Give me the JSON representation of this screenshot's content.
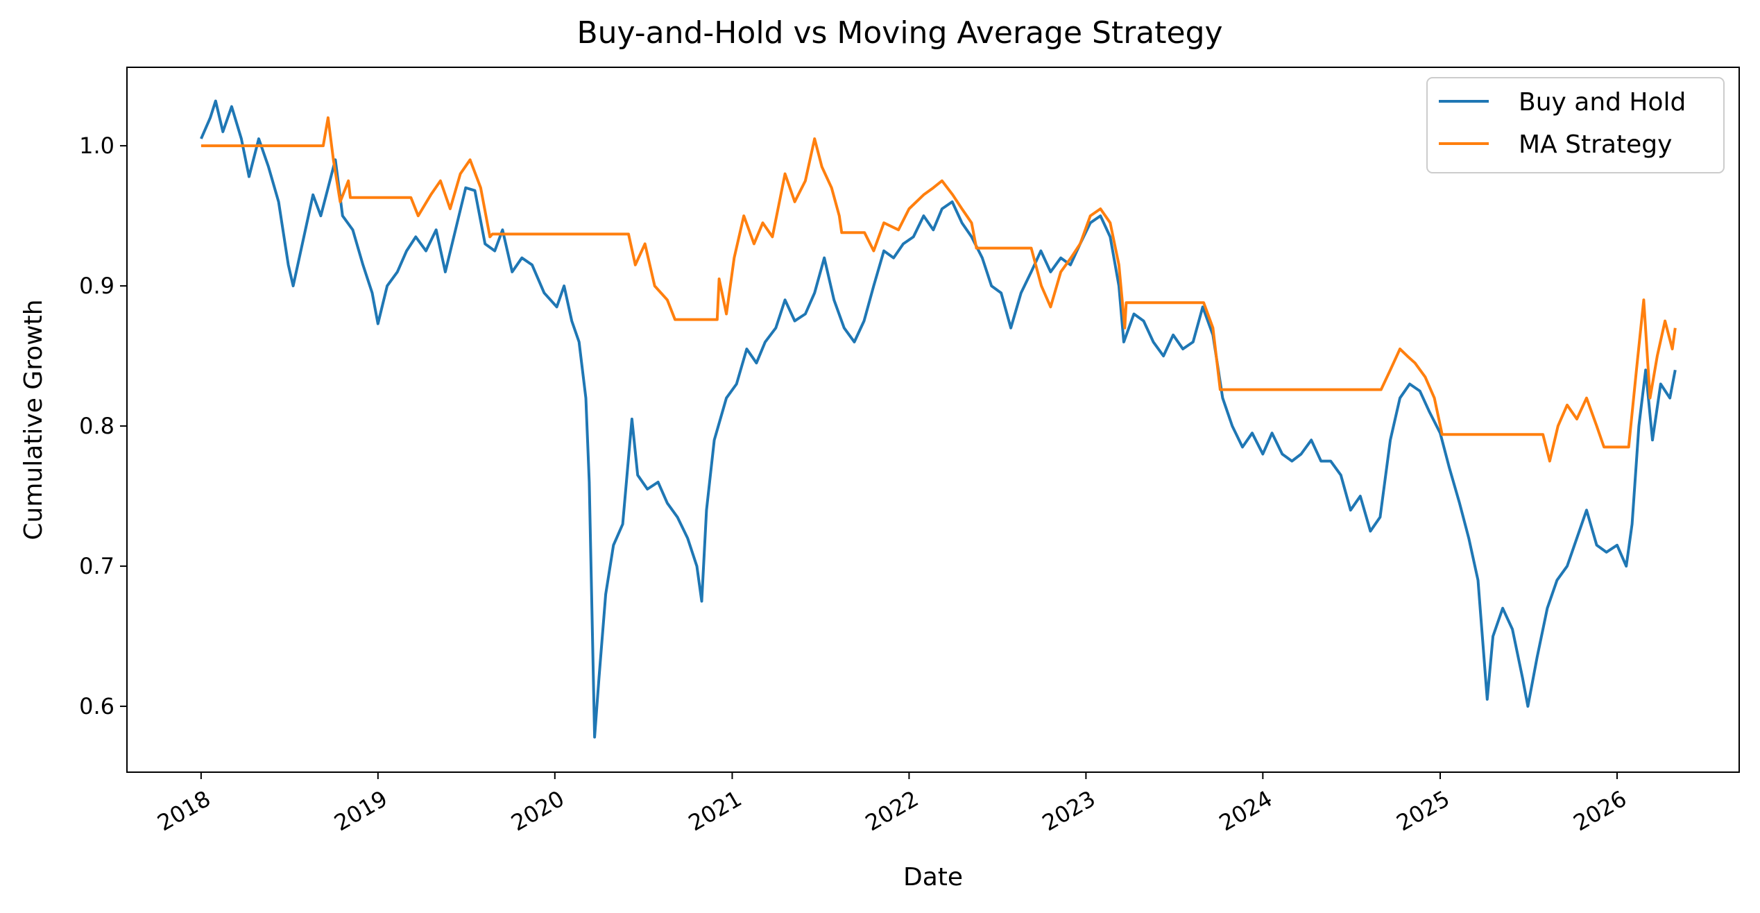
{
  "chart_data": {
    "type": "line",
    "title": "Buy-and-Hold vs Moving Average Strategy",
    "xlabel": "Date",
    "ylabel": "Cumulative Growth",
    "x_ticks": [
      "2018",
      "2019",
      "2020",
      "2021",
      "2022",
      "2023",
      "2024",
      "2025",
      "2026"
    ],
    "y_ticks": [
      "0.6",
      "0.7",
      "0.8",
      "0.9",
      "1.0"
    ],
    "xlim": [
      "2017-08-01",
      "2026-09-10"
    ],
    "ylim": [
      0.553,
      1.056
    ],
    "grid": false,
    "legend_position": "top-right",
    "series": [
      {
        "name": "Buy and Hold",
        "color": "#1f77b4",
        "points": [
          [
            "2018-01-01",
            1.005
          ],
          [
            "2018-01-20",
            1.02
          ],
          [
            "2018-01-31",
            1.032
          ],
          [
            "2018-02-15",
            1.01
          ],
          [
            "2018-03-05",
            1.028
          ],
          [
            "2018-03-25",
            1.005
          ],
          [
            "2018-04-10",
            0.978
          ],
          [
            "2018-04-30",
            1.005
          ],
          [
            "2018-05-20",
            0.985
          ],
          [
            "2018-06-10",
            0.96
          ],
          [
            "2018-06-30",
            0.915
          ],
          [
            "2018-07-10",
            0.9
          ],
          [
            "2018-08-01",
            0.935
          ],
          [
            "2018-08-20",
            0.965
          ],
          [
            "2018-09-05",
            0.95
          ],
          [
            "2018-09-20",
            0.97
          ],
          [
            "2018-10-05",
            0.99
          ],
          [
            "2018-10-20",
            0.95
          ],
          [
            "2018-11-10",
            0.94
          ],
          [
            "2018-12-01",
            0.915
          ],
          [
            "2018-12-20",
            0.895
          ],
          [
            "2019-01-01",
            0.873
          ],
          [
            "2019-01-20",
            0.9
          ],
          [
            "2019-02-10",
            0.91
          ],
          [
            "2019-03-01",
            0.925
          ],
          [
            "2019-03-20",
            0.935
          ],
          [
            "2019-04-10",
            0.925
          ],
          [
            "2019-05-01",
            0.94
          ],
          [
            "2019-05-20",
            0.91
          ],
          [
            "2019-06-10",
            0.94
          ],
          [
            "2019-07-01",
            0.97
          ],
          [
            "2019-07-20",
            0.968
          ],
          [
            "2019-08-10",
            0.93
          ],
          [
            "2019-08-30",
            0.925
          ],
          [
            "2019-09-15",
            0.94
          ],
          [
            "2019-10-05",
            0.91
          ],
          [
            "2019-10-25",
            0.92
          ],
          [
            "2019-11-15",
            0.915
          ],
          [
            "2019-12-10",
            0.895
          ],
          [
            "2020-01-05",
            0.885
          ],
          [
            "2020-01-20",
            0.9
          ],
          [
            "2020-02-05",
            0.875
          ],
          [
            "2020-02-20",
            0.86
          ],
          [
            "2020-03-05",
            0.82
          ],
          [
            "2020-03-12",
            0.76
          ],
          [
            "2020-03-23",
            0.578
          ],
          [
            "2020-04-01",
            0.62
          ],
          [
            "2020-04-15",
            0.68
          ],
          [
            "2020-05-01",
            0.715
          ],
          [
            "2020-05-20",
            0.73
          ],
          [
            "2020-06-08",
            0.805
          ],
          [
            "2020-06-20",
            0.765
          ],
          [
            "2020-07-10",
            0.755
          ],
          [
            "2020-08-01",
            0.76
          ],
          [
            "2020-08-20",
            0.745
          ],
          [
            "2020-09-10",
            0.735
          ],
          [
            "2020-10-01",
            0.72
          ],
          [
            "2020-10-20",
            0.7
          ],
          [
            "2020-10-30",
            0.675
          ],
          [
            "2020-11-09",
            0.74
          ],
          [
            "2020-11-25",
            0.79
          ],
          [
            "2020-12-20",
            0.82
          ],
          [
            "2021-01-10",
            0.83
          ],
          [
            "2021-01-31",
            0.855
          ],
          [
            "2021-02-20",
            0.845
          ],
          [
            "2021-03-10",
            0.86
          ],
          [
            "2021-04-01",
            0.87
          ],
          [
            "2021-04-20",
            0.89
          ],
          [
            "2021-05-10",
            0.875
          ],
          [
            "2021-06-01",
            0.88
          ],
          [
            "2021-06-20",
            0.895
          ],
          [
            "2021-07-10",
            0.92
          ],
          [
            "2021-07-30",
            0.89
          ],
          [
            "2021-08-20",
            0.87
          ],
          [
            "2021-09-10",
            0.86
          ],
          [
            "2021-09-30",
            0.875
          ],
          [
            "2021-10-20",
            0.9
          ],
          [
            "2021-11-10",
            0.925
          ],
          [
            "2021-11-30",
            0.92
          ],
          [
            "2021-12-20",
            0.93
          ],
          [
            "2022-01-10",
            0.935
          ],
          [
            "2022-01-31",
            0.95
          ],
          [
            "2022-02-20",
            0.94
          ],
          [
            "2022-03-10",
            0.955
          ],
          [
            "2022-03-31",
            0.96
          ],
          [
            "2022-04-20",
            0.945
          ],
          [
            "2022-05-10",
            0.935
          ],
          [
            "2022-06-01",
            0.92
          ],
          [
            "2022-06-20",
            0.9
          ],
          [
            "2022-07-10",
            0.895
          ],
          [
            "2022-07-30",
            0.87
          ],
          [
            "2022-08-20",
            0.895
          ],
          [
            "2022-09-10",
            0.91
          ],
          [
            "2022-09-30",
            0.925
          ],
          [
            "2022-10-20",
            0.91
          ],
          [
            "2022-11-10",
            0.92
          ],
          [
            "2022-11-30",
            0.915
          ],
          [
            "2022-12-20",
            0.93
          ],
          [
            "2023-01-10",
            0.945
          ],
          [
            "2023-01-31",
            0.95
          ],
          [
            "2023-02-20",
            0.935
          ],
          [
            "2023-03-10",
            0.9
          ],
          [
            "2023-03-20",
            0.86
          ],
          [
            "2023-04-10",
            0.88
          ],
          [
            "2023-04-30",
            0.875
          ],
          [
            "2023-05-20",
            0.86
          ],
          [
            "2023-06-10",
            0.85
          ],
          [
            "2023-06-30",
            0.865
          ],
          [
            "2023-07-20",
            0.855
          ],
          [
            "2023-08-10",
            0.86
          ],
          [
            "2023-08-30",
            0.885
          ],
          [
            "2023-09-20",
            0.865
          ],
          [
            "2023-10-10",
            0.82
          ],
          [
            "2023-10-30",
            0.8
          ],
          [
            "2023-11-20",
            0.785
          ],
          [
            "2023-12-10",
            0.795
          ],
          [
            "2024-01-01",
            0.78
          ],
          [
            "2024-01-20",
            0.795
          ],
          [
            "2024-02-10",
            0.78
          ],
          [
            "2024-03-01",
            0.775
          ],
          [
            "2024-03-20",
            0.78
          ],
          [
            "2024-04-10",
            0.79
          ],
          [
            "2024-04-30",
            0.775
          ],
          [
            "2024-05-20",
            0.775
          ],
          [
            "2024-06-10",
            0.765
          ],
          [
            "2024-06-30",
            0.74
          ],
          [
            "2024-07-20",
            0.75
          ],
          [
            "2024-08-10",
            0.725
          ],
          [
            "2024-08-30",
            0.735
          ],
          [
            "2024-09-20",
            0.79
          ],
          [
            "2024-10-10",
            0.82
          ],
          [
            "2024-10-30",
            0.83
          ],
          [
            "2024-11-20",
            0.825
          ],
          [
            "2024-12-10",
            0.81
          ],
          [
            "2025-01-01",
            0.795
          ],
          [
            "2025-01-20",
            0.77
          ],
          [
            "2025-02-10",
            0.745
          ],
          [
            "2025-03-01",
            0.72
          ],
          [
            "2025-03-20",
            0.69
          ],
          [
            "2025-04-08",
            0.605
          ],
          [
            "2025-04-20",
            0.65
          ],
          [
            "2025-05-10",
            0.67
          ],
          [
            "2025-05-30",
            0.655
          ],
          [
            "2025-06-20",
            0.62
          ],
          [
            "2025-07-01",
            0.6
          ],
          [
            "2025-07-20",
            0.635
          ],
          [
            "2025-08-10",
            0.67
          ],
          [
            "2025-08-30",
            0.69
          ],
          [
            "2025-09-20",
            0.7
          ],
          [
            "2025-10-10",
            0.72
          ],
          [
            "2025-10-30",
            0.74
          ],
          [
            "2025-11-20",
            0.715
          ],
          [
            "2025-12-10",
            0.71
          ],
          [
            "2026-01-01",
            0.715
          ],
          [
            "2026-01-20",
            0.7
          ],
          [
            "2026-02-01",
            0.73
          ],
          [
            "2026-02-15",
            0.8
          ],
          [
            "2026-03-01",
            0.84
          ],
          [
            "2026-03-15",
            0.79
          ],
          [
            "2026-04-01",
            0.83
          ],
          [
            "2026-04-20",
            0.82
          ],
          [
            "2026-05-01",
            0.84
          ]
        ]
      },
      {
        "name": "MA Strategy",
        "color": "#ff7f0e",
        "points": [
          [
            "2018-01-01",
            1.0
          ],
          [
            "2018-09-10",
            1.0
          ],
          [
            "2018-09-20",
            1.02
          ],
          [
            "2018-10-01",
            0.99
          ],
          [
            "2018-10-15",
            0.96
          ],
          [
            "2018-11-01",
            0.975
          ],
          [
            "2018-11-05",
            0.963
          ],
          [
            "2019-03-10",
            0.963
          ],
          [
            "2019-03-25",
            0.95
          ],
          [
            "2019-04-20",
            0.965
          ],
          [
            "2019-05-10",
            0.975
          ],
          [
            "2019-05-30",
            0.955
          ],
          [
            "2019-06-20",
            0.98
          ],
          [
            "2019-07-10",
            0.99
          ],
          [
            "2019-08-01",
            0.97
          ],
          [
            "2019-08-20",
            0.935
          ],
          [
            "2019-08-25",
            0.937
          ],
          [
            "2020-06-01",
            0.937
          ],
          [
            "2020-06-15",
            0.915
          ],
          [
            "2020-07-05",
            0.93
          ],
          [
            "2020-07-25",
            0.9
          ],
          [
            "2020-08-20",
            0.89
          ],
          [
            "2020-09-05",
            0.876
          ],
          [
            "2020-12-01",
            0.876
          ],
          [
            "2020-12-05",
            0.905
          ],
          [
            "2020-12-20",
            0.88
          ],
          [
            "2021-01-05",
            0.92
          ],
          [
            "2021-01-25",
            0.95
          ],
          [
            "2021-02-15",
            0.93
          ],
          [
            "2021-03-05",
            0.945
          ],
          [
            "2021-03-25",
            0.935
          ],
          [
            "2021-04-20",
            0.98
          ],
          [
            "2021-05-10",
            0.96
          ],
          [
            "2021-06-01",
            0.975
          ],
          [
            "2021-06-20",
            1.005
          ],
          [
            "2021-07-05",
            0.985
          ],
          [
            "2021-07-25",
            0.97
          ],
          [
            "2021-08-10",
            0.95
          ],
          [
            "2021-08-15",
            0.938
          ],
          [
            "2021-10-01",
            0.938
          ],
          [
            "2021-10-20",
            0.925
          ],
          [
            "2021-11-10",
            0.945
          ],
          [
            "2021-12-10",
            0.94
          ],
          [
            "2022-01-01",
            0.955
          ],
          [
            "2022-01-31",
            0.965
          ],
          [
            "2022-02-20",
            0.97
          ],
          [
            "2022-03-10",
            0.975
          ],
          [
            "2022-04-01",
            0.965
          ],
          [
            "2022-04-20",
            0.955
          ],
          [
            "2022-05-10",
            0.945
          ],
          [
            "2022-05-20",
            0.927
          ],
          [
            "2022-09-10",
            0.927
          ],
          [
            "2022-10-01",
            0.9
          ],
          [
            "2022-10-20",
            0.885
          ],
          [
            "2022-11-10",
            0.91
          ],
          [
            "2022-12-01",
            0.92
          ],
          [
            "2022-12-20",
            0.93
          ],
          [
            "2023-01-10",
            0.95
          ],
          [
            "2023-01-31",
            0.955
          ],
          [
            "2023-02-20",
            0.945
          ],
          [
            "2023-03-10",
            0.915
          ],
          [
            "2023-03-22",
            0.87
          ],
          [
            "2023-03-25",
            0.888
          ],
          [
            "2023-09-01",
            0.888
          ],
          [
            "2023-09-20",
            0.87
          ],
          [
            "2023-10-05",
            0.826
          ],
          [
            "2024-09-01",
            0.826
          ],
          [
            "2024-09-20",
            0.84
          ],
          [
            "2024-10-10",
            0.855
          ],
          [
            "2024-10-25",
            0.85
          ],
          [
            "2024-11-10",
            0.845
          ],
          [
            "2024-12-01",
            0.835
          ],
          [
            "2024-12-20",
            0.82
          ],
          [
            "2025-01-05",
            0.794
          ],
          [
            "2025-08-01",
            0.794
          ],
          [
            "2025-08-15",
            0.775
          ],
          [
            "2025-09-01",
            0.8
          ],
          [
            "2025-09-20",
            0.815
          ],
          [
            "2025-10-10",
            0.805
          ],
          [
            "2025-10-30",
            0.82
          ],
          [
            "2025-11-20",
            0.8
          ],
          [
            "2025-12-05",
            0.785
          ],
          [
            "2026-01-25",
            0.785
          ],
          [
            "2026-02-10",
            0.84
          ],
          [
            "2026-02-25",
            0.89
          ],
          [
            "2026-03-10",
            0.82
          ],
          [
            "2026-03-25",
            0.85
          ],
          [
            "2026-04-10",
            0.875
          ],
          [
            "2026-04-25",
            0.855
          ],
          [
            "2026-05-01",
            0.87
          ]
        ]
      }
    ]
  }
}
